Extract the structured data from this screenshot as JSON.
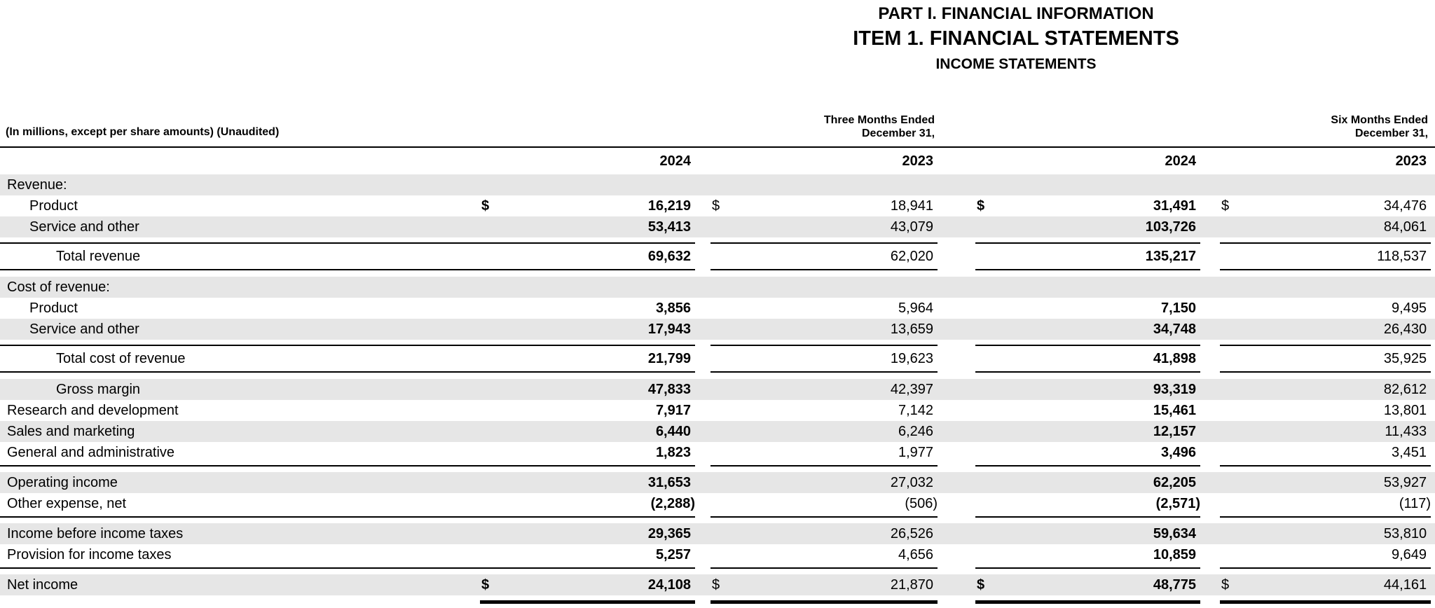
{
  "titles": {
    "part": "PART I. FINANCIAL INFORMATION",
    "item": "ITEM 1. FINANCIAL STATEMENTS",
    "statement": "INCOME STATEMENTS"
  },
  "table": {
    "caption": "(In millions, except per share amounts) (Unaudited)",
    "period_headers": [
      {
        "line1": "Three Months Ended",
        "line2": "December 31,"
      },
      {
        "line1": "Six Months Ended",
        "line2": "December 31,"
      }
    ],
    "year_headers": [
      "2024",
      "2023",
      "2024",
      "2023"
    ],
    "currency_symbol": "$",
    "colors": {
      "stripe": "#e6e6e6",
      "text": "#000000",
      "rule": "#000000"
    },
    "rows": [
      {
        "type": "section",
        "label": "Revenue:",
        "stripe": true
      },
      {
        "type": "data",
        "label": "Product",
        "indent": 1,
        "dollar": true,
        "stripe": false,
        "values": [
          "16,219",
          "18,941",
          "31,491",
          "34,476"
        ]
      },
      {
        "type": "data",
        "label": "Service and other",
        "indent": 1,
        "stripe": true,
        "values": [
          "53,413",
          "43,079",
          "103,726",
          "84,061"
        ]
      },
      {
        "type": "total",
        "label": "Total revenue",
        "indent": 2,
        "stripe": false,
        "values": [
          "69,632",
          "62,020",
          "135,217",
          "118,537"
        ]
      },
      {
        "type": "section",
        "label": "Cost of revenue:",
        "stripe": true
      },
      {
        "type": "data",
        "label": "Product",
        "indent": 1,
        "stripe": false,
        "values": [
          "3,856",
          "5,964",
          "7,150",
          "9,495"
        ]
      },
      {
        "type": "data",
        "label": "Service and other",
        "indent": 1,
        "stripe": true,
        "values": [
          "17,943",
          "13,659",
          "34,748",
          "26,430"
        ]
      },
      {
        "type": "total",
        "label": "Total cost of revenue",
        "indent": 2,
        "stripe": false,
        "values": [
          "21,799",
          "19,623",
          "41,898",
          "35,925"
        ]
      },
      {
        "type": "data",
        "label": "Gross margin",
        "indent": 2,
        "stripe": true,
        "values": [
          "47,833",
          "42,397",
          "93,319",
          "82,612"
        ]
      },
      {
        "type": "data",
        "label": "Research and development",
        "indent": 0,
        "stripe": false,
        "values": [
          "7,917",
          "7,142",
          "15,461",
          "13,801"
        ]
      },
      {
        "type": "data",
        "label": "Sales and marketing",
        "indent": 0,
        "stripe": true,
        "values": [
          "6,440",
          "6,246",
          "12,157",
          "11,433"
        ]
      },
      {
        "type": "data",
        "label": "General and administrative",
        "indent": 0,
        "stripe": false,
        "values": [
          "1,823",
          "1,977",
          "3,496",
          "3,451"
        ]
      },
      {
        "type": "rule"
      },
      {
        "type": "data",
        "label": "Operating income",
        "indent": 0,
        "stripe": true,
        "values": [
          "31,653",
          "27,032",
          "62,205",
          "53,927"
        ]
      },
      {
        "type": "data",
        "label": "Other expense, net",
        "indent": 0,
        "stripe": false,
        "values": [
          "(2,288)",
          "(506)",
          "(2,571)",
          "(117)"
        ]
      },
      {
        "type": "rule"
      },
      {
        "type": "data",
        "label": "Income before income taxes",
        "indent": 0,
        "stripe": true,
        "values": [
          "29,365",
          "26,526",
          "59,634",
          "53,810"
        ]
      },
      {
        "type": "data",
        "label": "Provision for income taxes",
        "indent": 0,
        "stripe": false,
        "values": [
          "5,257",
          "4,656",
          "10,859",
          "9,649"
        ]
      },
      {
        "type": "rule"
      },
      {
        "type": "data",
        "label": "Net income",
        "indent": 0,
        "dollar": true,
        "stripe": true,
        "values": [
          "24,108",
          "21,870",
          "48,775",
          "44,161"
        ]
      },
      {
        "type": "double-rule"
      }
    ]
  }
}
